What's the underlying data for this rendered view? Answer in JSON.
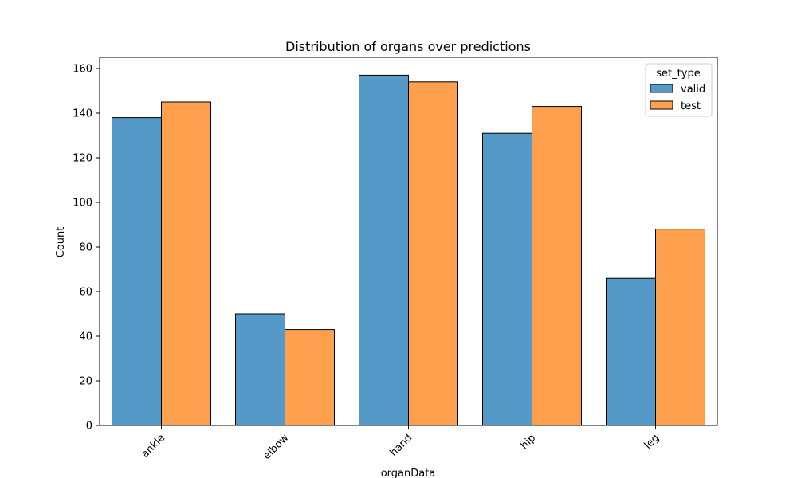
{
  "chart_data": {
    "type": "bar",
    "title": "Distribution of organs over predictions",
    "xlabel": "organData",
    "ylabel": "Count",
    "categories": [
      "ankle",
      "elbow",
      "hand",
      "hip",
      "leg"
    ],
    "series": [
      {
        "name": "valid",
        "color": "#5499c7",
        "values": [
          138,
          50,
          157,
          131,
          66
        ]
      },
      {
        "name": "test",
        "color": "#ffa04f",
        "values": [
          145,
          43,
          154,
          143,
          88
        ]
      }
    ],
    "ylim": [
      0,
      165
    ],
    "yticks": [
      0,
      20,
      40,
      60,
      80,
      100,
      120,
      140,
      160
    ],
    "grid": false,
    "legend": {
      "title": "set_type",
      "placement": "top-right"
    }
  }
}
